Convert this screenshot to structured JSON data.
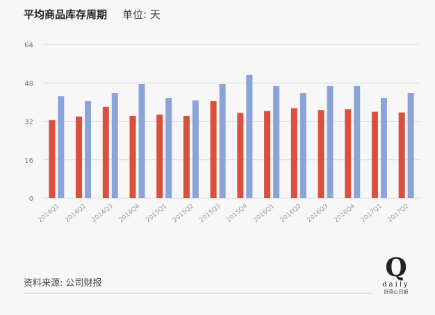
{
  "header": {
    "title": "平均商品库存周期",
    "unit": "单位: 天"
  },
  "footer": {
    "source": "资料来源: 公司财报"
  },
  "logo": {
    "letter": "Q",
    "word": "daily",
    "tagline": "好奇心日报"
  },
  "colors": {
    "series_a": "#d9503c",
    "series_b": "#8aa4d9",
    "grid": "#dddddd"
  },
  "chart_data": {
    "type": "bar",
    "title": "平均商品库存周期",
    "xlabel": "",
    "ylabel": "",
    "ylim": [
      0,
      64
    ],
    "yticks": [
      0,
      16,
      32,
      48,
      64
    ],
    "grid": true,
    "categories": [
      "2014Q1",
      "2014Q2",
      "2014Q3",
      "2014Q4",
      "2015Q1",
      "2015Q2",
      "2015Q3",
      "2015Q4",
      "2016Q1",
      "2016Q2",
      "2016Q3",
      "2016Q4",
      "2017Q1",
      "2017Q2"
    ],
    "series": [
      {
        "values": [
          32.5,
          34,
          38,
          34.2,
          34.8,
          34.2,
          40.5,
          35.5,
          36.3,
          37.5,
          36.7,
          37,
          36,
          35.7
        ]
      },
      {
        "values": [
          42.5,
          40.5,
          43.7,
          47.5,
          41.7,
          40.7,
          47.5,
          51.3,
          46.7,
          43.7,
          46.7,
          46.7,
          41.7,
          43.7
        ]
      }
    ]
  }
}
